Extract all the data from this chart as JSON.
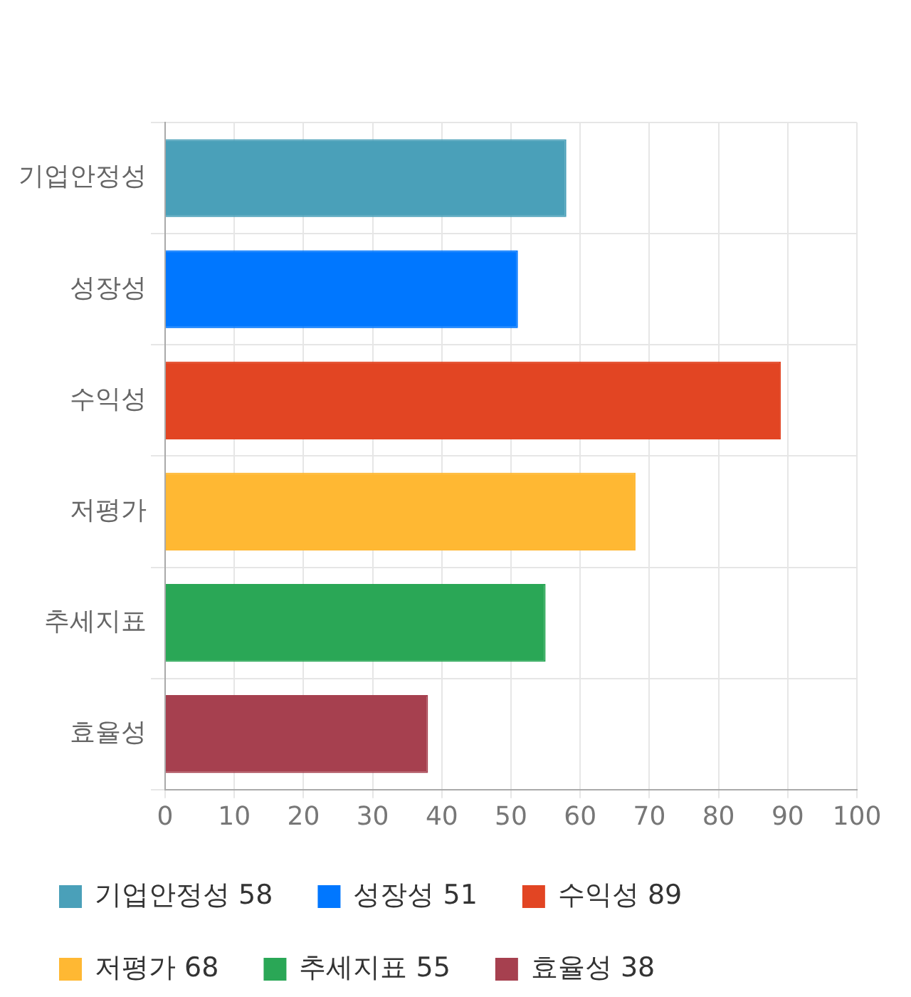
{
  "chart_data": {
    "type": "bar",
    "orientation": "horizontal",
    "categories": [
      "기업안정성",
      "성장성",
      "수익성",
      "저평가",
      "추세지표",
      "효율성"
    ],
    "series": [
      {
        "name": "기업안정성 58",
        "color": "#4aa0b9",
        "values": [
          58,
          null,
          null,
          null,
          null,
          null
        ]
      },
      {
        "name": "성장성 51",
        "color": "#0077ff",
        "values": [
          null,
          51,
          null,
          null,
          null,
          null
        ]
      },
      {
        "name": "수익성 89",
        "color": "#e24523",
        "values": [
          null,
          null,
          89,
          null,
          null,
          null
        ]
      },
      {
        "name": "저평가 68",
        "color": "#ffb833",
        "values": [
          null,
          null,
          null,
          68,
          null,
          null
        ]
      },
      {
        "name": "추세지표 55",
        "color": "#2aa756",
        "values": [
          null,
          null,
          null,
          null,
          55,
          null
        ]
      },
      {
        "name": "효율성 38",
        "color": "#a6404f",
        "values": [
          null,
          null,
          null,
          null,
          null,
          38
        ]
      }
    ],
    "xlim": [
      0,
      100
    ],
    "xticks": [
      0,
      10,
      20,
      30,
      40,
      50,
      60,
      70,
      80,
      90,
      100
    ],
    "grid": true,
    "legend": "bottom"
  }
}
